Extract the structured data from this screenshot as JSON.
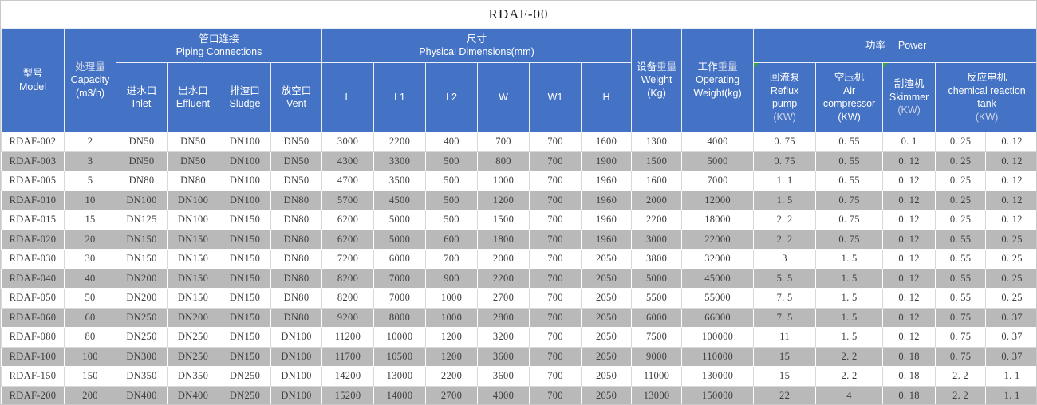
{
  "title": "RDAF-00",
  "colors": {
    "header_blue": "#4472c4",
    "row_gray": "#b9b9b9",
    "row_white": "#ffffff",
    "comment_triangle_green": "#3aa43a"
  },
  "header": {
    "model": {
      "zh": "型号",
      "en": "Model"
    },
    "capacity": {
      "zh": "处理量",
      "en": "Capacity",
      "unit": "(m3/h)"
    },
    "piping_group": {
      "zh": "管口连接",
      "en": "Piping Connections"
    },
    "inlet": {
      "zh": "进水口",
      "en": "Inlet"
    },
    "effluent": {
      "zh": "出水口",
      "en": "Effluent"
    },
    "sludge": {
      "zh": "排渣口",
      "en": "Sludge"
    },
    "vent": {
      "zh": "放空口",
      "en": "Vent"
    },
    "dimensions_group": {
      "zh": "尺寸",
      "en": "Physical Dimensions(mm)"
    },
    "dims": [
      "L",
      "L1",
      "L2",
      "W",
      "W1",
      "H"
    ],
    "weight": {
      "zh1": "设备",
      "zh2": "重量",
      "en": "Weight",
      "unit": "(Kg)"
    },
    "operating": {
      "zh1": "工作",
      "zh2": "重量",
      "en1": "Operating",
      "en2": "Weight(kg)"
    },
    "power_group": {
      "zh": "功率",
      "en": "Power"
    },
    "reflux": {
      "zh": "回流泵",
      "en1": "Reflux",
      "en2": "pump",
      "unit": "(KW)"
    },
    "air": {
      "zh": "空压机",
      "en1": "Air",
      "en2": "compressor",
      "unit": "(KW)"
    },
    "skimmer": {
      "zh": "刮渣机",
      "en": "Skimmer",
      "unit": "(KW)"
    },
    "reaction": {
      "zh": "反应电机",
      "en1": "chemical reaction",
      "en2": "tank",
      "unit": "(KW)"
    }
  },
  "table": {
    "cell_names": [
      "cell-model",
      "cell-capacity",
      "cell-inlet",
      "cell-effluent",
      "cell-sludge",
      "cell-vent",
      "cell-L",
      "cell-L1",
      "cell-L2",
      "cell-W",
      "cell-W1",
      "cell-H",
      "cell-weight",
      "cell-operating-weight",
      "cell-reflux-pump",
      "cell-air-compressor",
      "cell-skimmer",
      "cell-reaction-tank-1",
      "cell-reaction-tank-2"
    ],
    "rows": [
      [
        "RDAF-002",
        "2",
        "DN50",
        "DN50",
        "DN100",
        "DN50",
        "3000",
        "2200",
        "400",
        "700",
        "700",
        "1600",
        "1300",
        "4000",
        "0. 75",
        "0. 55",
        "0. 1",
        "0. 25",
        "0. 12"
      ],
      [
        "RDAF-003",
        "3",
        "DN50",
        "DN50",
        "DN100",
        "DN50",
        "4300",
        "3300",
        "500",
        "800",
        "700",
        "1900",
        "1500",
        "5000",
        "0. 75",
        "0. 55",
        "0. 12",
        "0. 25",
        "0. 12"
      ],
      [
        "RDAF-005",
        "5",
        "DN80",
        "DN80",
        "DN100",
        "DN50",
        "4700",
        "3500",
        "500",
        "1000",
        "700",
        "1960",
        "1600",
        "7000",
        "1. 1",
        "0. 55",
        "0. 12",
        "0. 25",
        "0. 12"
      ],
      [
        "RDAF-010",
        "10",
        "DN100",
        "DN100",
        "DN100",
        "DN80",
        "5700",
        "4500",
        "500",
        "1200",
        "700",
        "1960",
        "2000",
        "12000",
        "1. 5",
        "0. 75",
        "0. 12",
        "0. 25",
        "0. 12"
      ],
      [
        "RDAF-015",
        "15",
        "DN125",
        "DN100",
        "DN150",
        "DN80",
        "6200",
        "5000",
        "500",
        "1500",
        "700",
        "1960",
        "2200",
        "18000",
        "2. 2",
        "0. 75",
        "0. 12",
        "0. 25",
        "0. 12"
      ],
      [
        "RDAF-020",
        "20",
        "DN150",
        "DN150",
        "DN150",
        "DN80",
        "6200",
        "5000",
        "600",
        "1800",
        "700",
        "1960",
        "3000",
        "22000",
        "2. 2",
        "0. 75",
        "0. 12",
        "0. 55",
        "0. 25"
      ],
      [
        "RDAF-030",
        "30",
        "DN150",
        "DN150",
        "DN150",
        "DN80",
        "7200",
        "6000",
        "700",
        "2000",
        "700",
        "2050",
        "3800",
        "32000",
        "3",
        "1. 5",
        "0. 12",
        "0. 55",
        "0. 25"
      ],
      [
        "RDAF-040",
        "40",
        "DN200",
        "DN150",
        "DN150",
        "DN80",
        "8200",
        "7000",
        "900",
        "2200",
        "700",
        "2050",
        "5000",
        "45000",
        "5. 5",
        "1. 5",
        "0. 12",
        "0. 55",
        "0. 25"
      ],
      [
        "RDAF-050",
        "50",
        "DN200",
        "DN150",
        "DN150",
        "DN80",
        "8200",
        "7000",
        "1000",
        "2700",
        "700",
        "2050",
        "5500",
        "55000",
        "7. 5",
        "1. 5",
        "0. 12",
        "0. 55",
        "0. 25"
      ],
      [
        "RDAF-060",
        "60",
        "DN250",
        "DN200",
        "DN150",
        "DN80",
        "9200",
        "8000",
        "1000",
        "2800",
        "700",
        "2050",
        "6000",
        "66000",
        "7. 5",
        "1. 5",
        "0. 12",
        "0. 75",
        "0. 37"
      ],
      [
        "RDAF-080",
        "80",
        "DN250",
        "DN250",
        "DN150",
        "DN100",
        "11200",
        "10000",
        "1200",
        "3200",
        "700",
        "2050",
        "7500",
        "100000",
        "11",
        "1. 5",
        "0. 12",
        "0. 75",
        "0. 37"
      ],
      [
        "RDAF-100",
        "100",
        "DN300",
        "DN250",
        "DN150",
        "DN100",
        "11700",
        "10500",
        "1200",
        "3600",
        "700",
        "2050",
        "9000",
        "110000",
        "15",
        "2. 2",
        "0. 18",
        "0. 75",
        "0. 37"
      ],
      [
        "RDAF-150",
        "150",
        "DN350",
        "DN350",
        "DN250",
        "DN100",
        "14200",
        "13000",
        "2200",
        "3600",
        "700",
        "2050",
        "11000",
        "130000",
        "15",
        "2. 2",
        "0. 18",
        "2. 2",
        "1. 1"
      ],
      [
        "RDAF-200",
        "200",
        "DN400",
        "DN400",
        "DN250",
        "DN100",
        "15200",
        "14000",
        "2700",
        "4000",
        "700",
        "2050",
        "13000",
        "150000",
        "22",
        "4",
        "0. 18",
        "2. 2",
        "1. 1"
      ]
    ]
  }
}
